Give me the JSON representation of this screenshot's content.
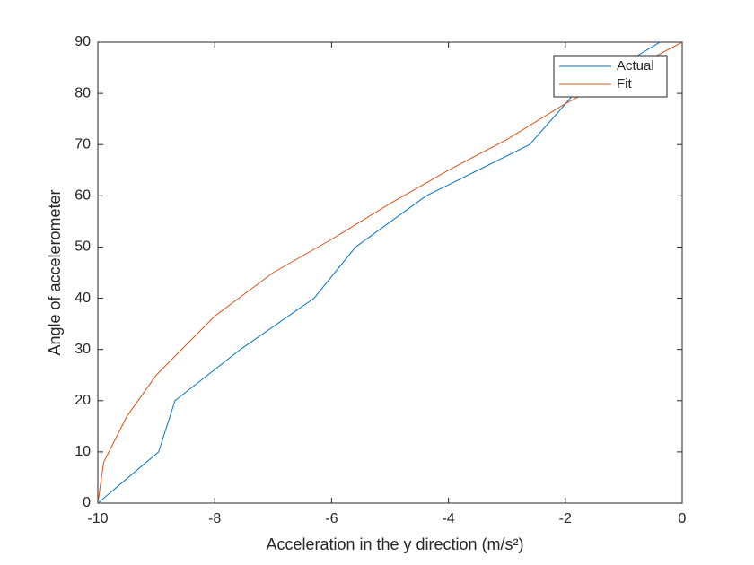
{
  "chart_data": {
    "type": "line",
    "xlabel": "Acceleration in the y direction (m/s²)",
    "ylabel": "Angle of accelerometer",
    "xlim": [
      -10,
      0
    ],
    "xticks": [
      -10,
      -8,
      -6,
      -4,
      -2,
      0
    ],
    "ylim": [
      0,
      90
    ],
    "yticks": [
      0,
      10,
      20,
      30,
      40,
      50,
      60,
      70,
      80,
      90
    ],
    "legend": "northeast",
    "series": [
      {
        "name": "Actual",
        "color": "#0072bd",
        "x": [
          -10,
          -8.96,
          -8.68,
          -7.56,
          -6.3,
          -5.59,
          -4.38,
          -2.61,
          -1.84,
          -0.38
        ],
        "values": [
          0,
          10,
          20,
          30,
          40,
          50,
          60,
          70,
          80,
          90
        ]
      },
      {
        "name": "Fit",
        "color": "#d95319",
        "x": [
          -10,
          -9.9,
          -9.5,
          -9,
          -8,
          -7,
          -6,
          -5,
          -4,
          -3,
          -2,
          -1,
          0
        ],
        "values": [
          0,
          8,
          17,
          25,
          36.5,
          45,
          51.5,
          58.5,
          65,
          71,
          78,
          84,
          90
        ]
      }
    ]
  }
}
